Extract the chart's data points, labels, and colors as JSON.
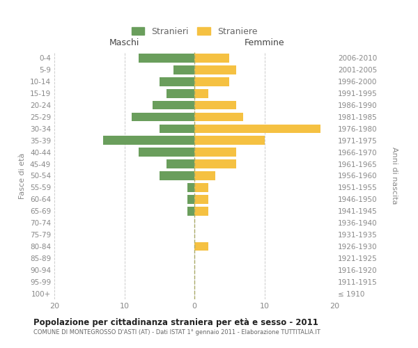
{
  "age_groups": [
    "100+",
    "95-99",
    "90-94",
    "85-89",
    "80-84",
    "75-79",
    "70-74",
    "65-69",
    "60-64",
    "55-59",
    "50-54",
    "45-49",
    "40-44",
    "35-39",
    "30-34",
    "25-29",
    "20-24",
    "15-19",
    "10-14",
    "5-9",
    "0-4"
  ],
  "birth_years": [
    "≤ 1910",
    "1911-1915",
    "1916-1920",
    "1921-1925",
    "1926-1930",
    "1931-1935",
    "1936-1940",
    "1941-1945",
    "1946-1950",
    "1951-1955",
    "1956-1960",
    "1961-1965",
    "1966-1970",
    "1971-1975",
    "1976-1980",
    "1981-1985",
    "1986-1990",
    "1991-1995",
    "1996-2000",
    "2001-2005",
    "2006-2010"
  ],
  "maschi": [
    0,
    0,
    0,
    0,
    0,
    0,
    0,
    1,
    1,
    1,
    5,
    4,
    8,
    13,
    5,
    9,
    6,
    4,
    5,
    3,
    8
  ],
  "femmine": [
    0,
    0,
    0,
    0,
    2,
    0,
    0,
    2,
    2,
    2,
    3,
    6,
    6,
    10,
    18,
    7,
    6,
    2,
    5,
    6,
    5
  ],
  "maschi_color": "#6a9e5c",
  "femmine_color": "#f5c142",
  "background_color": "#ffffff",
  "grid_color": "#cccccc",
  "title": "Popolazione per cittadinanza straniera per età e sesso - 2011",
  "subtitle": "COMUNE DI MONTEGROSSO D'ASTI (AT) - Dati ISTAT 1° gennaio 2011 - Elaborazione TUTTITALIA.IT",
  "ylabel_left": "Fasce di età",
  "ylabel_right": "Anni di nascita",
  "header_left": "Maschi",
  "header_right": "Femmine",
  "legend_maschi": "Stranieri",
  "legend_femmine": "Straniere",
  "xlim": 20,
  "bar_height": 0.75,
  "text_color": "#666666",
  "axis_text_color": "#888888"
}
